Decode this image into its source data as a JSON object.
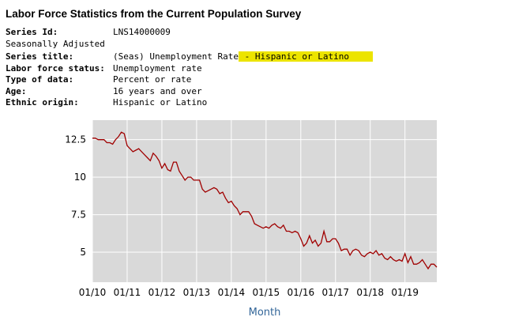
{
  "page": {
    "title": "Labor Force Statistics from the Current Population Survey"
  },
  "series_info": {
    "series_id_label": "Series Id:",
    "series_id_value": "LNS14000009",
    "seasonally_adjusted": "Seasonally Adjusted",
    "series_title_label": "Series title:",
    "series_title_value_pre": "(Seas) Unemployment Rate",
    "series_title_value_highlighted": " - Hispanic or Latino",
    "highlight_color": "#ece400",
    "labor_force_status_label": "Labor force status:",
    "labor_force_status_value": "Unemployment rate",
    "type_of_data_label": "Type of data:",
    "type_of_data_value": "Percent or rate",
    "age_label": "Age:",
    "age_value": "16 years and over",
    "ethnic_origin_label": "Ethnic origin:",
    "ethnic_origin_value": "Hispanic or Latino"
  },
  "chart_data": {
    "type": "line",
    "title": "",
    "xlabel": "Month",
    "ylabel": "",
    "xlabel_color": "#336699",
    "line_color": "#a00000",
    "plot_bg": "#d9d9d9",
    "grid_color": "#ffffff",
    "grid": true,
    "legend_position": "none",
    "x_start": "2010-01",
    "x_end": "2019-12",
    "x_tick_labels": [
      "01/10",
      "01/11",
      "01/12",
      "01/13",
      "01/14",
      "01/15",
      "01/16",
      "01/17",
      "01/18",
      "01/19"
    ],
    "y_ticks": [
      5,
      7.5,
      10,
      12.5
    ],
    "ylim": [
      3,
      13.8
    ],
    "series": [
      {
        "name": "(Seas) Unemployment Rate - Hispanic or Latino",
        "values": [
          12.6,
          12.6,
          12.5,
          12.5,
          12.5,
          12.3,
          12.3,
          12.2,
          12.5,
          12.7,
          13.0,
          12.9,
          12.1,
          11.9,
          11.7,
          11.8,
          11.9,
          11.7,
          11.5,
          11.3,
          11.1,
          11.6,
          11.4,
          11.1,
          10.6,
          10.9,
          10.5,
          10.4,
          11.0,
          11.0,
          10.4,
          10.1,
          9.8,
          10.0,
          10.0,
          9.8,
          9.8,
          9.8,
          9.2,
          9.0,
          9.1,
          9.2,
          9.3,
          9.2,
          8.9,
          9.0,
          8.6,
          8.3,
          8.4,
          8.1,
          7.9,
          7.5,
          7.7,
          7.7,
          7.7,
          7.4,
          6.9,
          6.8,
          6.7,
          6.6,
          6.7,
          6.6,
          6.8,
          6.9,
          6.7,
          6.6,
          6.8,
          6.4,
          6.4,
          6.3,
          6.4,
          6.3,
          5.9,
          5.4,
          5.6,
          6.1,
          5.6,
          5.8,
          5.4,
          5.6,
          6.4,
          5.7,
          5.7,
          5.9,
          5.9,
          5.6,
          5.1,
          5.2,
          5.2,
          4.8,
          5.1,
          5.2,
          5.1,
          4.8,
          4.7,
          4.9,
          5.0,
          4.9,
          5.1,
          4.8,
          4.9,
          4.6,
          4.5,
          4.7,
          4.5,
          4.4,
          4.5,
          4.4,
          4.9,
          4.3,
          4.7,
          4.2,
          4.2,
          4.3,
          4.5,
          4.2,
          3.9,
          4.2,
          4.2,
          4.0
        ]
      }
    ]
  }
}
